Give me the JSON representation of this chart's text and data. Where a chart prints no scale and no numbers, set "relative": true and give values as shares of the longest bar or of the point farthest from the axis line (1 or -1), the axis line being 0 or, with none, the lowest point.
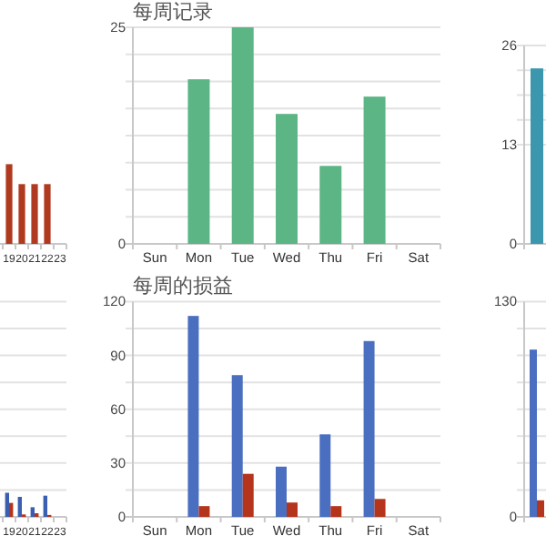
{
  "chart_data": [
    {
      "type": "bar",
      "relative": true,
      "categories": [
        "19",
        "20",
        "21",
        "22",
        "23"
      ],
      "values": [
        1,
        0.75,
        0.75,
        0.75,
        null
      ],
      "color": "#b03a20"
    },
    {
      "type": "bar",
      "title": "每周记录",
      "categories": [
        "Sun",
        "Mon",
        "Tue",
        "Wed",
        "Thu",
        "Fri",
        "Sat"
      ],
      "values": [
        null,
        19,
        25,
        15,
        9,
        17,
        null
      ],
      "color": "#5bb585",
      "ylim": [
        0,
        25
      ],
      "yticks": [
        0,
        {
          "value": 3.125,
          "label": null
        },
        {
          "value": 6.25,
          "label": null
        },
        {
          "value": 9.375,
          "label": null
        },
        {
          "value": 12.5,
          "label": null
        },
        {
          "value": 15.625,
          "label": null
        },
        {
          "value": 18.75,
          "label": null
        },
        {
          "value": 21.875,
          "label": null
        },
        25
      ],
      "grid": true
    },
    {
      "type": "bar",
      "categories": [
        null
      ],
      "values": [
        23
      ],
      "color": "#3a97ad",
      "ylim": [
        0,
        26
      ],
      "yticks": [
        0,
        13,
        {
          "value": 16.25,
          "label": null
        },
        {
          "value": 19.5,
          "label": null
        },
        {
          "value": 22.75,
          "label": null
        },
        26
      ],
      "grid": true
    },
    {
      "type": "bar",
      "relative": true,
      "categories": [
        "19",
        "20",
        "21",
        "22",
        "23"
      ],
      "series": [
        {
          "color": "#3b5fb0",
          "values": [
            1,
            0.83,
            0.4,
            0.88,
            null
          ]
        },
        {
          "color": "#b5341c",
          "values": [
            0.58,
            0.1,
            0.15,
            0.08,
            null
          ]
        }
      ]
    },
    {
      "type": "bar",
      "title": "每周的损益",
      "categories": [
        "Sun",
        "Mon",
        "Tue",
        "Wed",
        "Thu",
        "Fri",
        "Sat"
      ],
      "series": [
        {
          "color": "#4a6fc0",
          "values": [
            null,
            112,
            79,
            28,
            46,
            98,
            null
          ]
        },
        {
          "color": "#b5341c",
          "values": [
            null,
            6,
            24,
            8,
            6,
            10,
            null
          ]
        }
      ],
      "ylim": [
        0,
        120
      ],
      "yticks": [
        0,
        {
          "value": 15,
          "label": null
        },
        30,
        {
          "value": 45,
          "label": null
        },
        60,
        {
          "value": 75,
          "label": null
        },
        90,
        {
          "value": 105,
          "label": null
        },
        120
      ],
      "grid": true
    },
    {
      "type": "bar",
      "categories": [
        null
      ],
      "series": [
        {
          "color": "#4a6fc0",
          "values": [
            101
          ]
        },
        {
          "color": "#b5341c",
          "values": [
            10
          ]
        }
      ],
      "ylim": [
        0,
        130
      ],
      "yticks": [
        0,
        {
          "value": 16.25,
          "label": null
        },
        {
          "value": 32.5,
          "label": null
        },
        {
          "value": 48.75,
          "label": null
        },
        {
          "value": 65,
          "label": null
        },
        {
          "value": 81.25,
          "label": null
        },
        {
          "value": 97.5,
          "label": null
        },
        {
          "value": 113.75,
          "label": null
        },
        130
      ],
      "grid": true
    }
  ]
}
